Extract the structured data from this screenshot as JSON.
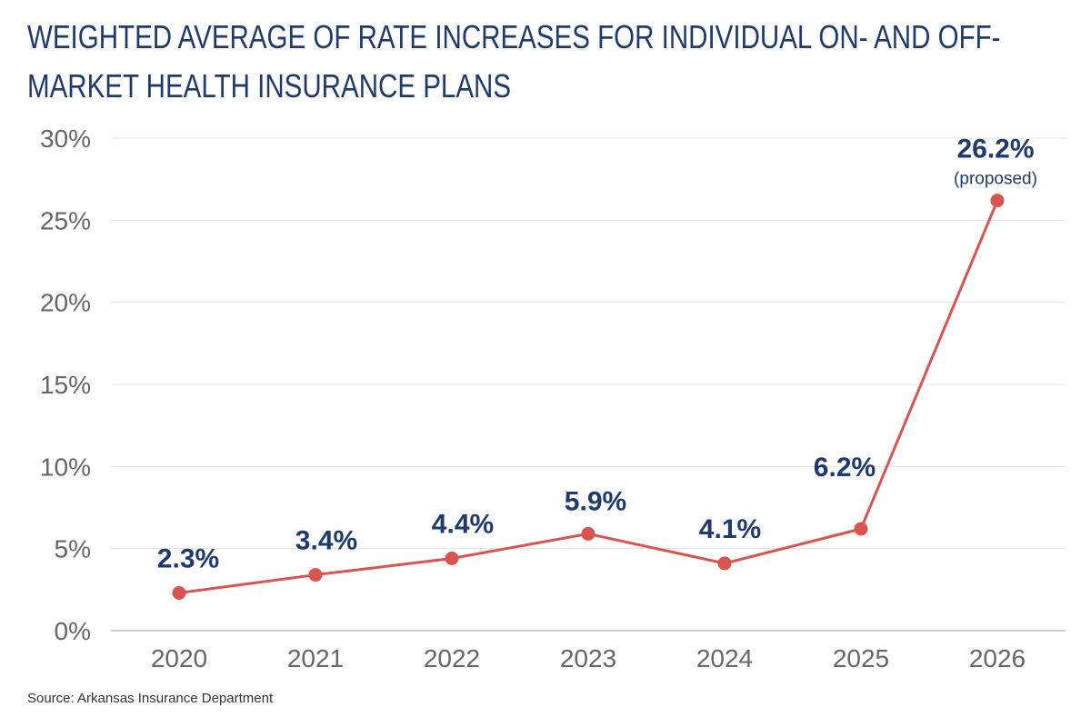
{
  "colors": {
    "title": "#1f3a6e",
    "line": "#d9534f",
    "data_label": "#1f3a6e",
    "tick_label": "#666666",
    "grid": "#e3e3e3",
    "axis": "#bdbdbd"
  },
  "chart_data": {
    "type": "line",
    "title": "WEIGHTED AVERAGE OF RATE INCREASES FOR INDIVIDUAL ON- AND OFF-MARKET HEALTH INSURANCE PLANS",
    "categories": [
      "2020",
      "2021",
      "2022",
      "2023",
      "2024",
      "2025",
      "2026"
    ],
    "series": [
      {
        "values": [
          2.3,
          3.4,
          4.4,
          5.9,
          4.1,
          6.2,
          26.2
        ],
        "data_labels": [
          "2.3%",
          "3.4%",
          "4.4%",
          "5.9%",
          "4.1%",
          "6.2%",
          "26.2%"
        ]
      }
    ],
    "annotations": [
      {
        "category": "2026",
        "text": "(proposed)"
      }
    ],
    "ylim": [
      0,
      30
    ],
    "yticks": [
      0,
      5,
      10,
      15,
      20,
      25,
      30
    ],
    "ytick_labels": [
      "0%",
      "5%",
      "10%",
      "15%",
      "20%",
      "25%",
      "30%"
    ],
    "grid": true,
    "legend": "none",
    "source": "Source: Arkansas Insurance Department"
  }
}
